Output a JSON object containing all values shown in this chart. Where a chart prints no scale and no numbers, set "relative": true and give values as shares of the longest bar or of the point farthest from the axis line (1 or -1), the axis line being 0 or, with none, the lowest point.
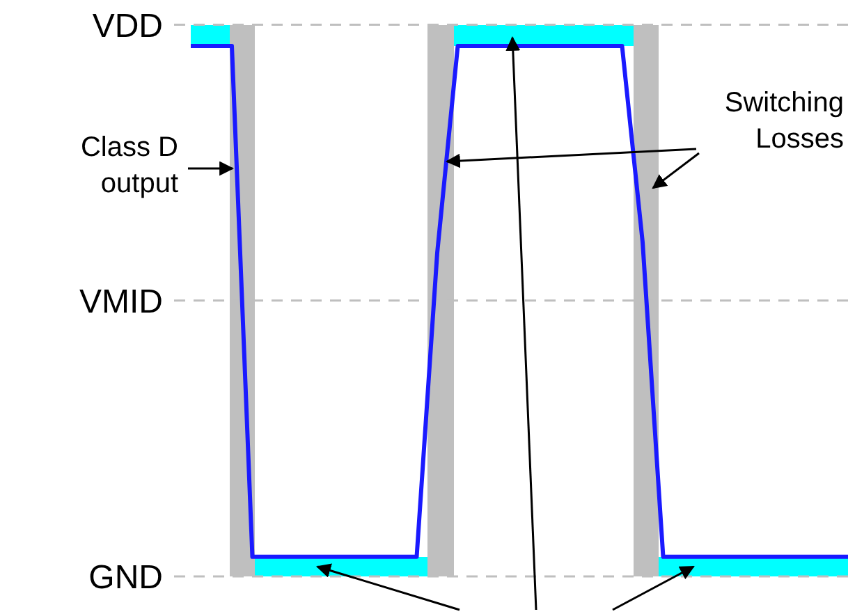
{
  "chart_data": {
    "type": "line",
    "relative": true,
    "line_style": "solid",
    "marker": "none",
    "color": "#1a1aff",
    "categories": [
      null,
      null,
      null,
      null,
      null,
      null,
      null,
      null,
      null,
      null,
      null,
      null,
      null,
      null,
      null,
      null,
      null,
      null,
      null,
      null,
      null,
      null,
      null,
      null,
      null,
      null,
      null,
      null,
      null,
      null,
      null,
      null,
      null
    ],
    "values": [
      1,
      1,
      1,
      0.037,
      0.037,
      0.037,
      0.037,
      0.037,
      0.037,
      0.037,
      0.037,
      0.037,
      0.61,
      1,
      1,
      1,
      1,
      1,
      1,
      1,
      1,
      1,
      0.63,
      0.037,
      0.037,
      0.037,
      0.037,
      0.037,
      0.037,
      0.037,
      0.037,
      0.037,
      0.037
    ],
    "ref_lines": [
      {
        "axis": "y",
        "value": 1.04,
        "label": "VDD",
        "line_style": "dashed",
        "color": "#bfbfbf"
      },
      {
        "axis": "y",
        "value": 0.52,
        "label": "VMID",
        "line_style": "dashed",
        "color": "#bfbfbf"
      },
      {
        "axis": "y",
        "value": 0,
        "label": "GND",
        "line_style": "dashed",
        "color": "#bfbfbf"
      }
    ],
    "annotations": [
      "Class D output",
      "Switching Losses"
    ]
  }
}
